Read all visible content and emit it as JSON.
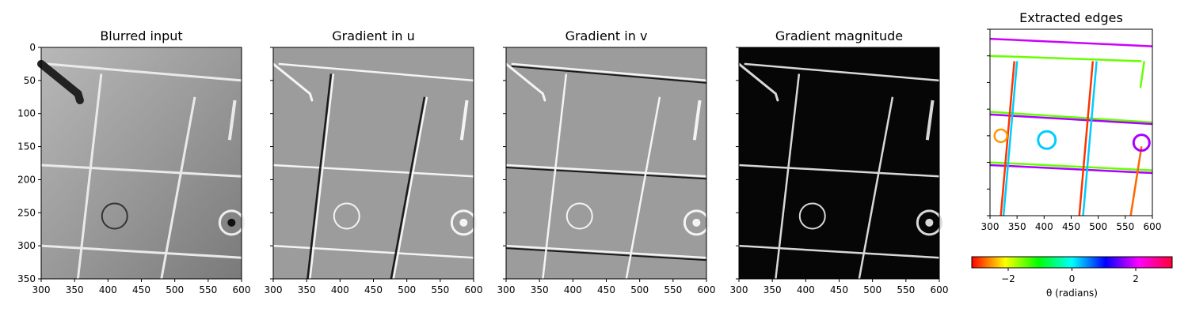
{
  "figure": {
    "colorbar": {
      "label": "θ (radians)",
      "ticks": [
        -2,
        0,
        2
      ],
      "range": [
        -3.1416,
        3.1416
      ],
      "colormap": "hsv"
    }
  },
  "chart_data": [
    {
      "type": "image",
      "title": "Blurred input",
      "xlim": [
        300,
        600
      ],
      "ylim": [
        350,
        0
      ],
      "xticks": [
        300,
        350,
        400,
        450,
        500,
        550,
        600
      ],
      "yticks": [
        0,
        50,
        100,
        150,
        200,
        250,
        300,
        350
      ],
      "colormap": "gray"
    },
    {
      "type": "image",
      "title": "Gradient in u",
      "xlim": [
        300,
        600
      ],
      "ylim": [
        350,
        0
      ],
      "xticks": [
        300,
        350,
        400,
        450,
        500,
        550,
        600
      ],
      "yticks": [
        0,
        50,
        100,
        150,
        200,
        250,
        300,
        350
      ],
      "colormap": "gray"
    },
    {
      "type": "image",
      "title": "Gradient in v",
      "xlim": [
        300,
        600
      ],
      "ylim": [
        350,
        0
      ],
      "xticks": [
        300,
        350,
        400,
        450,
        500,
        550,
        600
      ],
      "yticks": [
        0,
        50,
        100,
        150,
        200,
        250,
        300,
        350
      ],
      "colormap": "gray"
    },
    {
      "type": "image",
      "title": "Gradient magnitude",
      "xlim": [
        300,
        600
      ],
      "ylim": [
        350,
        0
      ],
      "xticks": [
        300,
        350,
        400,
        450,
        500,
        550,
        600
      ],
      "yticks": [
        0,
        50,
        100,
        150,
        200,
        250,
        300,
        350
      ],
      "colormap": "gray"
    },
    {
      "type": "scatter",
      "title": "Extracted edges",
      "xlim": [
        300,
        600
      ],
      "ylim": [
        350,
        0
      ],
      "xticks": [
        300,
        350,
        400,
        450,
        500,
        550,
        600
      ],
      "yticks": [
        0,
        50,
        100,
        150,
        200,
        250,
        300,
        350
      ],
      "colormap": "hsv"
    }
  ]
}
